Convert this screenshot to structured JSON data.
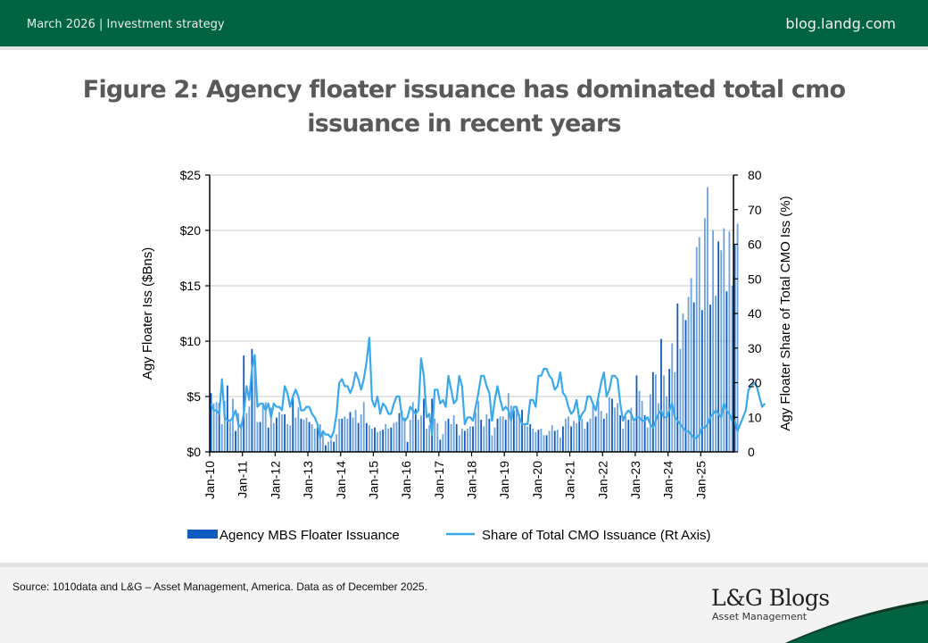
{
  "header": {
    "date": "March 2026",
    "separator": "|",
    "category": "Investment strategy",
    "site": "blog.landg.com"
  },
  "footer": {
    "source": "Source: 1010data and L&G – Asset Management, America. Data as of December 2025.",
    "logo_title": "L&G Blogs",
    "logo_subtitle": "Asset Management"
  },
  "colors": {
    "brand_green": "#006341",
    "bar_dark": "#0f5bbf",
    "bar_light": "#6ea2dc",
    "line": "#3aa9ec",
    "title_gray": "#58595b"
  },
  "chart_data": {
    "type": "bar+line",
    "title": "Figure 2: Agency floater issuance has dominated total cmo issuance in recent years",
    "ylabel": "Agy Floater Iss ($Bns)",
    "y2label": "Agy Floater Share of Total CMO Iss (%)",
    "ylim": [
      0,
      25
    ],
    "y2lim": [
      0,
      80
    ],
    "yticks": [
      "$0",
      "$5",
      "$10",
      "$15",
      "$20",
      "$25"
    ],
    "y2ticks": [
      "0",
      "10",
      "20",
      "30",
      "40",
      "50",
      "60",
      "70",
      "80"
    ],
    "xticks": [
      "Jan-10",
      "Jan-11",
      "Jan-12",
      "Jan-13",
      "Jan-14",
      "Jan-15",
      "Jan-16",
      "Jan-17",
      "Jan-18",
      "Jan-19",
      "Jan-20",
      "Jan-21",
      "Jan-22",
      "Jan-23",
      "Jan-24",
      "Jan-25"
    ],
    "x_start": "Jan-10",
    "x_end": "Dec-25",
    "frequency": "monthly",
    "grid": true,
    "legend_position": "bottom",
    "series": [
      {
        "name": "Agency MBS Floater Issuance",
        "type": "bar",
        "axis": "left",
        "values": [
          5.3,
          4.4,
          4.5,
          4.4,
          2.5,
          4.6,
          6.0,
          2.7,
          4.8,
          1.9,
          3.5,
          2.6,
          8.7,
          3.5,
          4.1,
          9.3,
          8.0,
          2.7,
          2.7,
          4.3,
          4.5,
          2.2,
          4.0,
          2.6,
          3.1,
          3.6,
          3.4,
          3.4,
          2.5,
          2.4,
          4.9,
          3.1,
          4.0,
          3.0,
          2.9,
          3.1,
          2.7,
          2.5,
          2.1,
          2.2,
          2.5,
          1.7,
          0.6,
          0.9,
          1.1,
          0.9,
          1.6,
          3.0,
          3.0,
          3.2,
          3.0,
          3.6,
          3.1,
          3.8,
          2.6,
          3.4,
          4.5,
          2.6,
          2.4,
          2.1,
          2.2,
          1.8,
          1.9,
          2.0,
          2.5,
          2.1,
          2.2,
          2.6,
          2.7,
          3.5,
          3.7,
          3.1,
          0.9,
          2.9,
          4.5,
          3.9,
          2.9,
          3.3,
          4.8,
          2.1,
          2.4,
          4.8,
          3.0,
          2.6,
          1.1,
          1.6,
          2.8,
          3.0,
          2.5,
          3.3,
          2.5,
          1.5,
          2.1,
          1.9,
          2.1,
          2.3,
          2.3,
          3.6,
          4.6,
          2.9,
          2.3,
          3.4,
          3.0,
          1.5,
          2.2,
          3.0,
          3.2,
          3.2,
          2.9,
          5.3,
          4.2,
          3.7,
          4.0,
          3.4,
          3.8,
          2.6,
          2.3,
          2.5,
          2.1,
          1.8,
          2.0,
          2.1,
          1.5,
          1.5,
          1.9,
          2.4,
          1.9,
          2.0,
          1.3,
          2.3,
          3.0,
          3.2,
          2.3,
          2.8,
          2.6,
          3.3,
          3.0,
          2.1,
          2.7,
          3.0,
          4.3,
          3.2,
          4.6,
          3.7,
          3.0,
          3.5,
          4.9,
          4.8,
          4.0,
          4.4,
          3.3,
          2.1,
          3.2,
          2.9,
          4.0,
          2.7,
          6.9,
          5.5,
          4.6,
          3.3,
          2.2,
          5.2,
          7.2,
          7.0,
          4.4,
          10.2,
          6.9,
          5.0,
          7.5,
          9.8,
          7.2,
          13.4,
          9.3,
          12.5,
          11.9,
          14.0,
          15.7,
          13.5,
          18.5,
          19.4,
          12.8,
          21.1,
          23.9,
          13.3,
          20.0,
          14.1,
          19.0,
          18.2,
          20.2,
          14.5,
          19.9,
          15.0,
          18.7,
          20.6
        ]
      },
      {
        "name": "Share of Total CMO Issuance (Rt Axis)",
        "type": "line",
        "axis": "right",
        "values": [
          14,
          12,
          12,
          11,
          21,
          10,
          9,
          9,
          10,
          12,
          8,
          7,
          11,
          19,
          15,
          24,
          28,
          13,
          14,
          14,
          12,
          14,
          10,
          14,
          13,
          13,
          12,
          19,
          17,
          13,
          16,
          18,
          16,
          12,
          12,
          13,
          13,
          11,
          10,
          8,
          4,
          6,
          5,
          5,
          4,
          6,
          11,
          20,
          21,
          19,
          19,
          17,
          19,
          23,
          21,
          18,
          21,
          26,
          33,
          15,
          13,
          16,
          11,
          14,
          13,
          11,
          11,
          14,
          16,
          16,
          10,
          9,
          10,
          13,
          12,
          11,
          12,
          27,
          22,
          10,
          11,
          5,
          18,
          18,
          14,
          15,
          13,
          22,
          18,
          14,
          15,
          22,
          19,
          8,
          10,
          10,
          9,
          13,
          17,
          22,
          22,
          19,
          17,
          9,
          15,
          19,
          15,
          12,
          13,
          12,
          9,
          13,
          13,
          10,
          8,
          8,
          8,
          15,
          15,
          13,
          22,
          22,
          24,
          24,
          22,
          21,
          18,
          19,
          23,
          17,
          16,
          13,
          11,
          12,
          15,
          9,
          11,
          12,
          16,
          16,
          14,
          12,
          16,
          20,
          23,
          16,
          18,
          22,
          22,
          21,
          14,
          9,
          11,
          12,
          11,
          9,
          10,
          10,
          9,
          9,
          10,
          8,
          7,
          9,
          11,
          12,
          10,
          10,
          12,
          14,
          10,
          9,
          8,
          7,
          6,
          6,
          5,
          4,
          4,
          5,
          7,
          7,
          8,
          10,
          11,
          12,
          11,
          10,
          14,
          12,
          11,
          9,
          9,
          6,
          8,
          10,
          12,
          18,
          19,
          20,
          19,
          16,
          13,
          14
        ]
      }
    ],
    "series2_values_note": "line values in %"
  }
}
